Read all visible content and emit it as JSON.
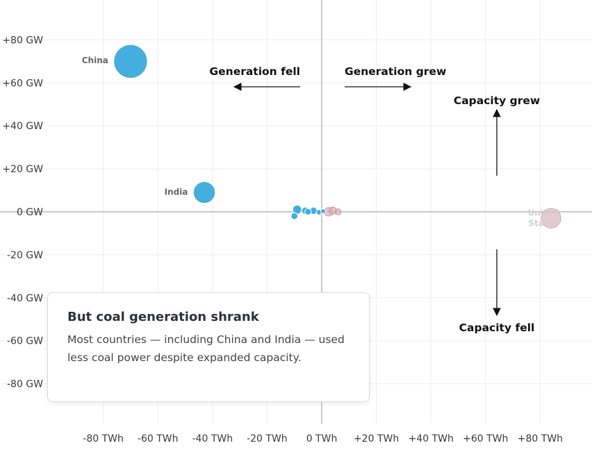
{
  "chart_data": {
    "type": "scatter",
    "title": "",
    "xlabel": "",
    "ylabel": "",
    "xlim": [
      -100,
      92
    ],
    "ylim": [
      -92,
      95
    ],
    "x_ticks": [
      {
        "value": -80,
        "label": "-80 TWh"
      },
      {
        "value": -60,
        "label": "-60 TWh"
      },
      {
        "value": -40,
        "label": "-40 TWh"
      },
      {
        "value": -20,
        "label": "-20 TWh"
      },
      {
        "value": 0,
        "label": "0 TWh"
      },
      {
        "value": 20,
        "label": "+20 TWh"
      },
      {
        "value": 40,
        "label": "+40 TWh"
      },
      {
        "value": 60,
        "label": "+60 TWh"
      },
      {
        "value": 80,
        "label": "+80 TWh"
      }
    ],
    "y_ticks": [
      {
        "value": 80,
        "label": "+80 GW"
      },
      {
        "value": 60,
        "label": "+60 GW"
      },
      {
        "value": 40,
        "label": "+40 GW"
      },
      {
        "value": 20,
        "label": "+20 GW"
      },
      {
        "value": 0,
        "label": "0 GW"
      },
      {
        "value": -20,
        "label": "-20 GW"
      },
      {
        "value": -40,
        "label": "-40 GW"
      },
      {
        "value": -60,
        "label": "-60 GW"
      },
      {
        "value": -80,
        "label": "-80 GW"
      }
    ],
    "grid": true,
    "colors": {
      "decrease": "#3aaadc",
      "increase": "#d9a9b2",
      "increase_stroke": "#c9949f"
    },
    "points": [
      {
        "label": "China",
        "x": -70,
        "y": 70,
        "size": 38,
        "group": "decrease"
      },
      {
        "label": "India",
        "x": -43,
        "y": 9,
        "size": 16,
        "group": "decrease"
      },
      {
        "label": "United States",
        "x": 84,
        "y": -3,
        "size": 13,
        "group": "increase"
      },
      {
        "label": "",
        "x": -9,
        "y": 1,
        "size": 2.8,
        "group": "decrease"
      },
      {
        "label": "",
        "x": -10,
        "y": -2,
        "size": 1.6,
        "group": "decrease"
      },
      {
        "label": "",
        "x": -6,
        "y": 0.5,
        "size": 1.8,
        "group": "decrease"
      },
      {
        "label": "",
        "x": -5,
        "y": 0,
        "size": 1.4,
        "group": "decrease"
      },
      {
        "label": "",
        "x": -3,
        "y": 0.5,
        "size": 1.8,
        "group": "decrease"
      },
      {
        "label": "",
        "x": -1,
        "y": -0.2,
        "size": 1.0,
        "group": "decrease"
      },
      {
        "label": "",
        "x": 0.5,
        "y": 0.3,
        "size": 0.8,
        "group": "decrease"
      },
      {
        "label": "",
        "x": 2.5,
        "y": 0,
        "size": 2.4,
        "group": "increase"
      },
      {
        "label": "",
        "x": 4,
        "y": 0.5,
        "size": 1.8,
        "group": "increase"
      },
      {
        "label": "",
        "x": 6,
        "y": 0,
        "size": 1.2,
        "group": "increase"
      }
    ]
  },
  "annotations": {
    "generation_fell": "Generation fell",
    "generation_grew": "Generation grew",
    "capacity_grew": "Capacity grew",
    "capacity_fell": "Capacity fell"
  },
  "callout": {
    "title": "But coal generation shrank",
    "body": "Most countries — including China and India — used less coal power despite expanded capacity."
  }
}
